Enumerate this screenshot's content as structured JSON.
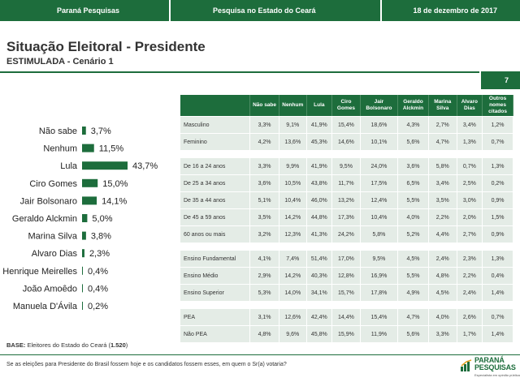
{
  "header": {
    "brand": "Paraná Pesquisas",
    "survey": "Pesquisa no Estado do Ceará",
    "date": "18 de dezembro de 2017"
  },
  "title": "Situação Eleitoral - Presidente",
  "subtitle": "ESTIMULADA - Cenário 1",
  "page_number": "7",
  "colors": {
    "brand_green": "#1d6d3c",
    "row_bg": "#e4ece6"
  },
  "chart_data": {
    "type": "bar",
    "orientation": "horizontal",
    "categories": [
      "Não sabe",
      "Nenhum",
      "Lula",
      "Ciro Gomes",
      "Jair Bolsonaro",
      "Geraldo Alckmin",
      "Marina Silva",
      "Alvaro Dias",
      "Henrique Meirelles",
      "João Amoêdo",
      "Manuela D'Ávila"
    ],
    "values": [
      3.7,
      11.5,
      43.7,
      15.0,
      14.1,
      5.0,
      3.8,
      2.3,
      0.4,
      0.4,
      0.2
    ],
    "labels": [
      "3,7%",
      "11,5%",
      "43,7%",
      "15,0%",
      "14,1%",
      "5,0%",
      "3,8%",
      "2,3%",
      "0,4%",
      "0,4%",
      "0,2%"
    ],
    "xlim": [
      0,
      43.7
    ]
  },
  "table": {
    "columns": [
      "Não sabe",
      "Nenhum",
      "Lula",
      "Ciro Gomes",
      "Jair Bolsonaro",
      "Geraldo Alckmin",
      "Marina Silva",
      "Alvaro Dias",
      "Outros nomes citados"
    ],
    "groups": [
      {
        "rows": [
          {
            "label": "Masculino",
            "values": [
              "3,3%",
              "9,1%",
              "41,9%",
              "15,4%",
              "18,6%",
              "4,3%",
              "2,7%",
              "3,4%",
              "1,2%"
            ]
          },
          {
            "label": "Feminino",
            "values": [
              "4,2%",
              "13,6%",
              "45,3%",
              "14,6%",
              "10,1%",
              "5,6%",
              "4,7%",
              "1,3%",
              "0,7%"
            ]
          }
        ]
      },
      {
        "rows": [
          {
            "label": "De 16 a 24 anos",
            "values": [
              "3,3%",
              "9,9%",
              "41,9%",
              "9,5%",
              "24,0%",
              "3,6%",
              "5,8%",
              "0,7%",
              "1,3%"
            ]
          },
          {
            "label": "De 25 a 34 anos",
            "values": [
              "3,6%",
              "10,5%",
              "43,8%",
              "11,7%",
              "17,5%",
              "6,5%",
              "3,4%",
              "2,5%",
              "0,2%"
            ]
          },
          {
            "label": "De 35 a 44 anos",
            "values": [
              "5,1%",
              "10,4%",
              "46,0%",
              "13,2%",
              "12,4%",
              "5,5%",
              "3,5%",
              "3,0%",
              "0,9%"
            ]
          },
          {
            "label": "De 45 a 59 anos",
            "values": [
              "3,5%",
              "14,2%",
              "44,8%",
              "17,3%",
              "10,4%",
              "4,0%",
              "2,2%",
              "2,0%",
              "1,5%"
            ]
          },
          {
            "label": "60 anos ou mais",
            "values": [
              "3,2%",
              "12,3%",
              "41,3%",
              "24,2%",
              "5,8%",
              "5,2%",
              "4,4%",
              "2,7%",
              "0,9%"
            ]
          }
        ]
      },
      {
        "rows": [
          {
            "label": "Ensino Fundamental",
            "values": [
              "4,1%",
              "7,4%",
              "51,4%",
              "17,0%",
              "9,5%",
              "4,5%",
              "2,4%",
              "2,3%",
              "1,3%"
            ]
          },
          {
            "label": "Ensino Médio",
            "values": [
              "2,9%",
              "14,2%",
              "40,3%",
              "12,8%",
              "16,9%",
              "5,5%",
              "4,8%",
              "2,2%",
              "0,4%"
            ]
          },
          {
            "label": "Ensino Superior",
            "values": [
              "5,3%",
              "14,0%",
              "34,1%",
              "15,7%",
              "17,8%",
              "4,9%",
              "4,5%",
              "2,4%",
              "1,4%"
            ]
          }
        ]
      },
      {
        "rows": [
          {
            "label": "PEA",
            "values": [
              "3,1%",
              "12,6%",
              "42,4%",
              "14,4%",
              "15,4%",
              "4,7%",
              "4,0%",
              "2,6%",
              "0,7%"
            ]
          },
          {
            "label": "Não PEA",
            "values": [
              "4,8%",
              "9,6%",
              "45,8%",
              "15,9%",
              "11,9%",
              "5,6%",
              "3,3%",
              "1,7%",
              "1,4%"
            ]
          }
        ]
      }
    ]
  },
  "footer": {
    "base_label": "BASE:",
    "base_text": "Eleitores do Estado do Ceará (",
    "base_count": "1.520",
    "base_close": ")",
    "question": "Se as eleições para Presidente do Brasil fossem hoje e os candidatos fossem esses, em quem o Sr(a) votaria?",
    "logo_line1": "PARANÁ",
    "logo_line2": "PESQUISAS",
    "logo_tagline": "Especialista em opinião pública"
  }
}
